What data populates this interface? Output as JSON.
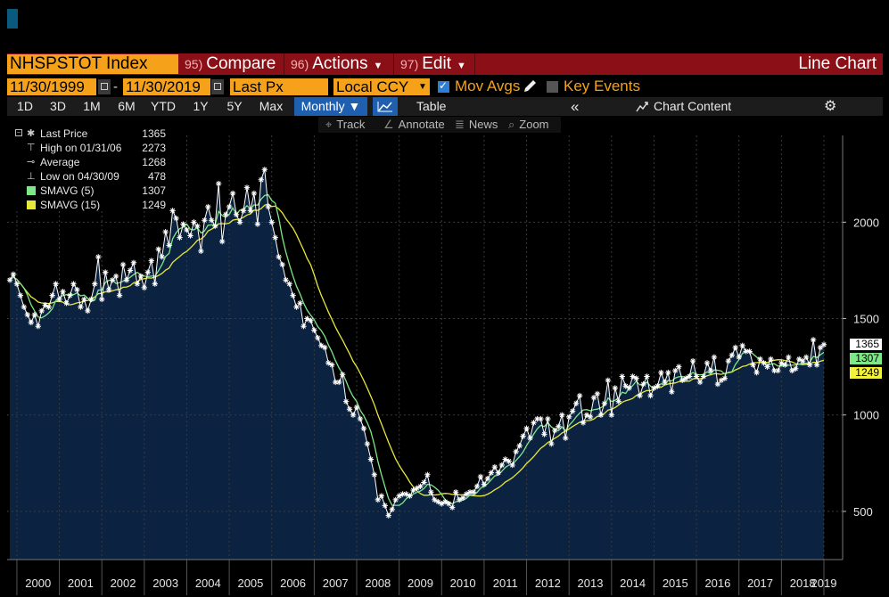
{
  "header": {
    "security": "NHSPSTOT Index",
    "menu": [
      {
        "num": "95)",
        "label": "Compare",
        "caret": false
      },
      {
        "num": "96)",
        "label": "Actions",
        "caret": true
      },
      {
        "num": "97)",
        "label": "Edit",
        "caret": true
      }
    ],
    "chart_type": "Line Chart"
  },
  "settings": {
    "start_date": "11/30/1999",
    "date_sep": "-",
    "end_date": "11/30/2019",
    "field": "Last Px",
    "currency": "Local CCY",
    "mov_avgs_label": "Mov Avgs",
    "mov_avgs_checked": true,
    "key_events_label": "Key Events",
    "key_events_checked": false
  },
  "ranges": [
    "1D",
    "3D",
    "1M",
    "6M",
    "YTD",
    "1Y",
    "5Y",
    "Max"
  ],
  "frequency": "Monthly ▼",
  "table_label": "Table",
  "collapse_glyph": "«",
  "chart_content_label": "Chart Content",
  "settings_glyph": "⚙",
  "tools": [
    {
      "icon": "crosshair-icon",
      "glyph": "⌖",
      "label": "Track"
    },
    {
      "icon": "annotate-icon",
      "glyph": "∠",
      "label": "Annotate"
    },
    {
      "icon": "news-icon",
      "glyph": "≣",
      "label": "News"
    },
    {
      "icon": "zoom-icon",
      "glyph": "⌕",
      "label": "Zoom"
    }
  ],
  "legend": [
    {
      "label": "Last Price",
      "value": "1365",
      "sym": "star"
    },
    {
      "label": "High on 01/31/06",
      "value": "2273",
      "sym": "high"
    },
    {
      "label": "Average",
      "value": "1268",
      "sym": "avg"
    },
    {
      "label": "Low on 04/30/09",
      "value": "478",
      "sym": "low"
    },
    {
      "label": "SMAVG (5)",
      "value": "1307",
      "sym": "green"
    },
    {
      "label": "SMAVG (15)",
      "value": "1249",
      "sym": "yellow"
    }
  ],
  "price_tags": [
    {
      "value": "1365",
      "bg": "#ffffff"
    },
    {
      "value": "1307",
      "bg": "#7ee787"
    },
    {
      "value": "1249",
      "bg": "#f2f23a"
    }
  ],
  "colors": {
    "area_fill": "#0b2340",
    "price_line": "#ffffff",
    "sma5": "#7ee787",
    "sma15": "#e8e83a",
    "grid": "#3a3a3a",
    "orange": "#f5a21a",
    "title_bar": "#8b0f16"
  },
  "chart_data": {
    "type": "line",
    "x_label_years": [
      "2000",
      "2001",
      "2002",
      "2003",
      "2004",
      "2005",
      "2006",
      "2007",
      "2008",
      "2009",
      "2010",
      "2011",
      "2012",
      "2013",
      "2014",
      "2015",
      "2016",
      "2017",
      "2018",
      "2019"
    ],
    "y_ticks": [
      500,
      1000,
      1500,
      2000
    ],
    "ylim": [
      250,
      2450
    ],
    "x_start": "1999-11",
    "x_end": "2019-11",
    "series": [
      {
        "name": "Last Price",
        "style": "line-with-star-markers",
        "values": [
          1700,
          1730,
          1680,
          1620,
          1560,
          1520,
          1480,
          1520,
          1460,
          1540,
          1570,
          1560,
          1620,
          1680,
          1600,
          1640,
          1580,
          1620,
          1680,
          1650,
          1560,
          1600,
          1540,
          1600,
          1680,
          1820,
          1600,
          1740,
          1650,
          1700,
          1720,
          1620,
          1780,
          1700,
          1750,
          1790,
          1680,
          1720,
          1660,
          1740,
          1800,
          1680,
          1860,
          1820,
          1950,
          1880,
          2060,
          2020,
          1920,
          1990,
          1960,
          1930,
          2000,
          1980,
          1850,
          2010,
          2080,
          2010,
          1980,
          2200,
          1900,
          2040,
          2080,
          2150,
          2040,
          2000,
          2060,
          2180,
          2060,
          2150,
          1990,
          2220,
          2273,
          2080,
          2000,
          1920,
          1820,
          1780,
          1700,
          1680,
          1620,
          1560,
          1580,
          1460,
          1500,
          1490,
          1440,
          1400,
          1360,
          1350,
          1270,
          1260,
          1170,
          1170,
          1210,
          1070,
          1030,
          1000,
          1040,
          980,
          930,
          850,
          770,
          690,
          560,
          580,
          530,
          478,
          510,
          560,
          580,
          590,
          590,
          580,
          610,
          620,
          630,
          650,
          690,
          600,
          560,
          550,
          540,
          550,
          540,
          520,
          600,
          560,
          570,
          590,
          600,
          600,
          630,
          680,
          640,
          670,
          700,
          730,
          700,
          740,
          770,
          760,
          740,
          810,
          840,
          890,
          930,
          880,
          960,
          980,
          980,
          900,
          980,
          850,
          920,
          940,
          1000,
          880,
          990,
          1020,
          1060,
          1100,
          960,
          1000,
          990,
          1090,
          1110,
          1000,
          1060,
          1180,
          1000,
          1140,
          1070,
          1200,
          1150,
          1140,
          1200,
          1190,
          1100,
          1160,
          1200,
          1100,
          1140,
          1150,
          1220,
          1170,
          1220,
          1120,
          1230,
          1250,
          1180,
          1190,
          1200,
          1280,
          1200,
          1170,
          1200,
          1270,
          1230,
          1300,
          1160,
          1180,
          1190,
          1280,
          1310,
          1350,
          1300,
          1360,
          1330,
          1330,
          1260,
          1220,
          1290,
          1270,
          1250,
          1290,
          1230,
          1230,
          1270,
          1260,
          1300,
          1230,
          1240,
          1290,
          1280,
          1300,
          1260,
          1390,
          1260,
          1350,
          1365
        ]
      },
      {
        "name": "SMAVG (5)",
        "period": 5
      },
      {
        "name": "SMAVG (15)",
        "period": 15
      }
    ]
  }
}
